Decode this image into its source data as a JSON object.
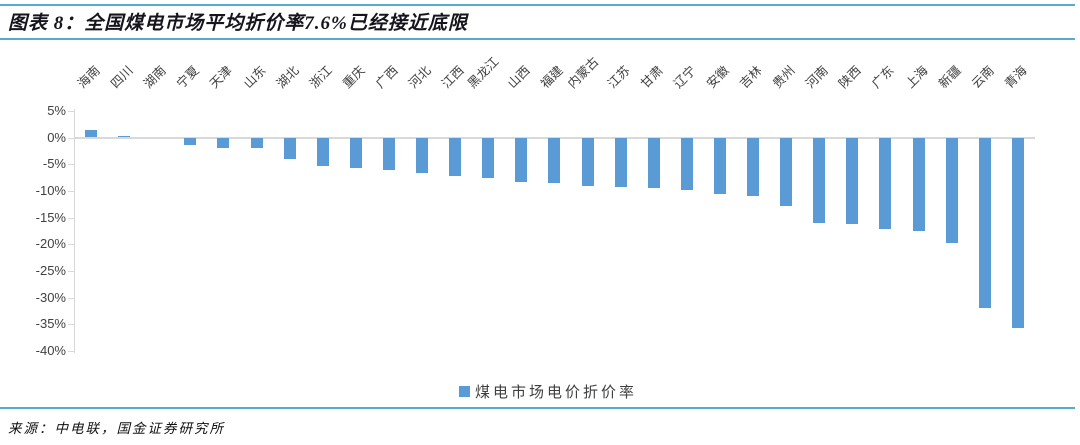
{
  "header": {
    "title": "图表 8：全国煤电市场平均折价率7.6%已经接近底限"
  },
  "chart_data": {
    "type": "bar",
    "title": "全国煤电市场平均折价率7.6%已经接近底限",
    "categories": [
      "海南",
      "四川",
      "湖南",
      "宁夏",
      "天津",
      "山东",
      "湖北",
      "浙江",
      "重庆",
      "广西",
      "河北",
      "江西",
      "黑龙江",
      "山西",
      "福建",
      "内蒙古",
      "江苏",
      "甘肃",
      "辽宁",
      "安徽",
      "吉林",
      "贵州",
      "河南",
      "陕西",
      "广东",
      "上海",
      "新疆",
      "云南",
      "青海"
    ],
    "values": [
      1.4,
      0.3,
      0.0,
      -1.4,
      -2.0,
      -2.0,
      -4.1,
      -5.4,
      -5.7,
      -6.0,
      -6.6,
      -7.3,
      -7.5,
      -8.3,
      -8.6,
      -9.1,
      -9.2,
      -9.5,
      -9.8,
      -10.5,
      -11.0,
      -12.8,
      -16.0,
      -16.2,
      -17.2,
      -17.6,
      -19.7,
      -31.9,
      -35.7
    ],
    "unit": "%",
    "series_name": "煤电市场电价折价率",
    "ylim": [
      -40,
      5
    ],
    "ytick_step": 5,
    "ytick_labels": [
      "5%",
      "0%",
      "-5%",
      "-10%",
      "-15%",
      "-20%",
      "-25%",
      "-30%",
      "-35%",
      "-40%"
    ],
    "grid": "zero-line-only",
    "legend_position": "bottom",
    "xlabel": "",
    "ylabel": ""
  },
  "legend": {
    "label": "煤电市场电价折价率",
    "swatch_color": "#5B9BD5"
  },
  "footer": {
    "source": "来源：中电联，国金证券研究所"
  },
  "colors": {
    "accent_rule": "#54AECB",
    "bar": "#5B9BD5",
    "axis_line": "#D9D9D9",
    "axis_text": "#404040"
  }
}
